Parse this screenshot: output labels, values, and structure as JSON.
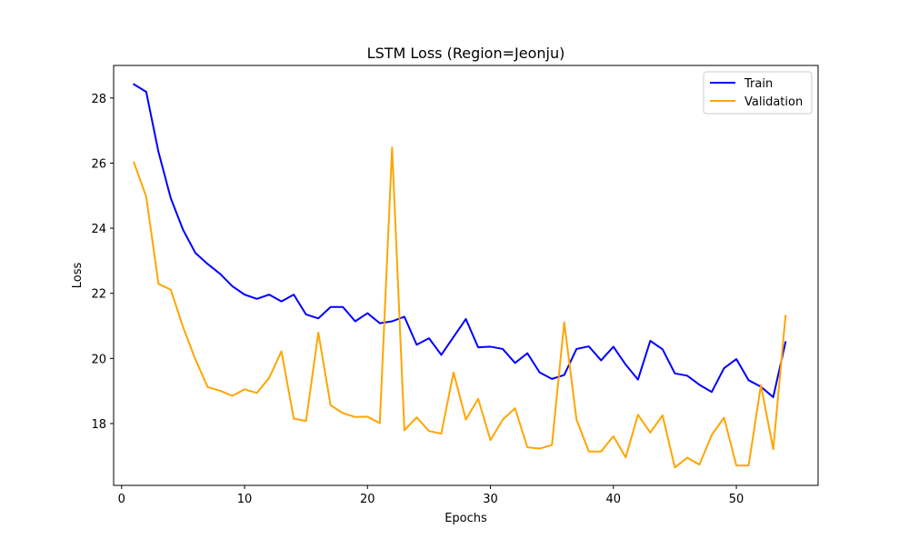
{
  "chart_data": {
    "type": "line",
    "title": "LSTM Loss (Region=Jeonju)",
    "xlabel": "Epochs",
    "ylabel": "Loss",
    "xlim": [
      -0.65,
      56.65
    ],
    "ylim": [
      16.1,
      29.0
    ],
    "xticks": [
      0,
      10,
      20,
      30,
      40,
      50
    ],
    "yticks": [
      18,
      20,
      22,
      24,
      26,
      28
    ],
    "grid": false,
    "legend_position": "top-right",
    "x": [
      1,
      2,
      3,
      4,
      5,
      6,
      7,
      8,
      9,
      10,
      11,
      12,
      13,
      14,
      15,
      16,
      17,
      18,
      19,
      20,
      21,
      22,
      23,
      24,
      25,
      26,
      27,
      28,
      29,
      30,
      31,
      32,
      33,
      34,
      35,
      36,
      37,
      38,
      39,
      40,
      41,
      42,
      43,
      44,
      45,
      46,
      47,
      48,
      49,
      50,
      51,
      52,
      53,
      54
    ],
    "series": [
      {
        "name": "Train",
        "color": "#0000ff",
        "values": [
          28.42,
          28.19,
          26.34,
          24.92,
          23.95,
          23.24,
          22.9,
          22.6,
          22.22,
          21.96,
          21.83,
          21.96,
          21.75,
          21.96,
          21.35,
          21.23,
          21.58,
          21.58,
          21.14,
          21.39,
          21.08,
          21.14,
          21.28,
          20.42,
          20.62,
          20.11,
          20.66,
          21.21,
          20.34,
          20.36,
          20.29,
          19.86,
          20.16,
          19.57,
          19.37,
          19.49,
          20.29,
          20.37,
          19.94,
          20.36,
          19.81,
          19.35,
          20.54,
          20.28,
          19.54,
          19.47,
          19.19,
          18.97,
          19.7,
          19.98,
          19.33,
          19.13,
          18.81,
          20.5
        ]
      },
      {
        "name": "Validation",
        "color": "#ffa500",
        "values": [
          26.02,
          24.97,
          22.29,
          22.11,
          20.96,
          19.97,
          19.12,
          19.01,
          18.85,
          19.05,
          18.94,
          19.4,
          20.22,
          18.15,
          18.08,
          20.79,
          18.56,
          18.32,
          18.2,
          18.21,
          18.01,
          26.48,
          17.79,
          18.19,
          17.77,
          17.69,
          19.57,
          18.12,
          18.76,
          17.49,
          18.12,
          18.47,
          17.27,
          17.23,
          17.34,
          21.11,
          18.12,
          17.14,
          17.14,
          17.61,
          16.96,
          18.27,
          17.72,
          18.25,
          16.65,
          16.95,
          16.74,
          17.65,
          18.18,
          16.71,
          16.71,
          19.18,
          17.21,
          21.31
        ]
      }
    ]
  }
}
